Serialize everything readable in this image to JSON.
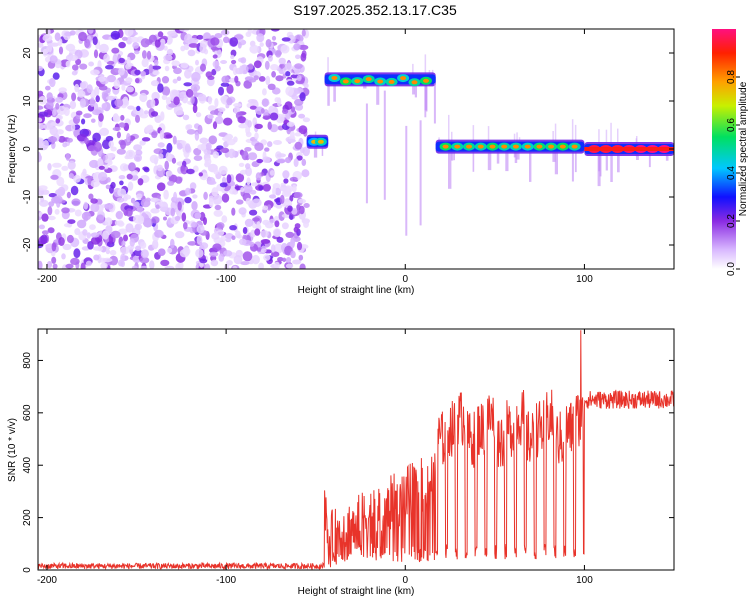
{
  "title": "S197.2025.352.13.17.C35",
  "chart_data": [
    {
      "type": "heatmap",
      "name": "spectrogram",
      "xlabel": "Height of straight line (km)",
      "ylabel": "Frequency (Hz)",
      "xlim": [
        -205,
        150
      ],
      "ylim": [
        -25,
        25
      ],
      "xticks": [
        -200,
        -100,
        0,
        100
      ],
      "yticks": [
        -20,
        -10,
        0,
        10,
        20
      ],
      "colorbar": {
        "label": "Normalized spectral amplitude",
        "range": [
          0.0,
          1.0
        ],
        "ticks": [
          0.0,
          0.2,
          0.4,
          0.6,
          0.8
        ]
      },
      "segments": [
        {
          "x_start": -205,
          "x_end": -55,
          "kind": "noise",
          "amplitude": 0.1
        },
        {
          "x_start": -55,
          "x_end": -43,
          "freq": 1.5,
          "amplitude": 0.4
        },
        {
          "x_start": -45,
          "x_end": 17,
          "freq": 14.5,
          "amplitude": 0.45
        },
        {
          "x_start": 17,
          "x_end": 100,
          "freq": 0.5,
          "amplitude": 0.45
        },
        {
          "x_start": 100,
          "x_end": 150,
          "freq": 0.0,
          "amplitude": 0.95
        }
      ]
    },
    {
      "type": "line",
      "name": "snr",
      "xlabel": "Height of straight line (km)",
      "ylabel": "SNR (10 * v/v)",
      "xlim": [
        -205,
        150
      ],
      "ylim": [
        0,
        920
      ],
      "xticks": [
        -200,
        -100,
        0,
        100
      ],
      "yticks": [
        0,
        200,
        400,
        600,
        800
      ],
      "color": "#e8332a",
      "segments": [
        {
          "x_start": -205,
          "x_end": -45,
          "level": 15,
          "kind": "flat"
        },
        {
          "x_start": -45,
          "x_end": 17,
          "level": 200,
          "kind": "rising"
        },
        {
          "x_start": 17,
          "x_end": 100,
          "level": 600,
          "kind": "dropouts"
        },
        {
          "x_start": 100,
          "x_end": 150,
          "level": 650,
          "kind": "steady"
        }
      ],
      "peak": {
        "x": 98,
        "y": 915
      }
    }
  ]
}
